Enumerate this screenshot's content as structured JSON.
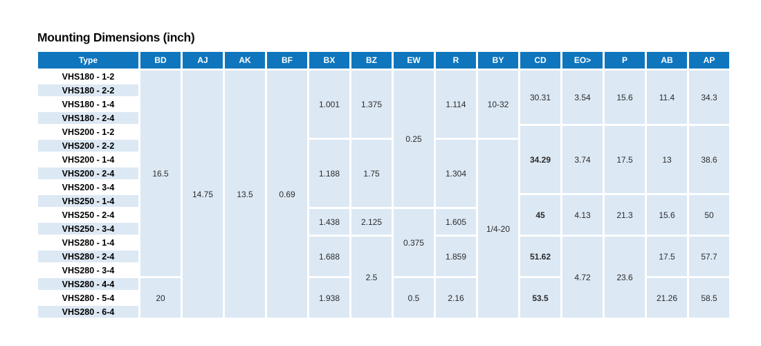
{
  "title": "Mounting Dimensions (inch)",
  "colors": {
    "header_bg": "#0f76bd",
    "band_bg": "#dce8f4",
    "header_text": "#ffffff",
    "label_text": "#000000",
    "value_text": "#2b2b2b"
  },
  "table": {
    "columns": [
      "Type",
      "BD",
      "AJ",
      "AK",
      "BF",
      "BX",
      "BZ",
      "EW",
      "R",
      "BY",
      "CD",
      "EO>",
      "P",
      "AB",
      "AP"
    ],
    "row_labels": [
      "VHS180 - 1-2",
      "VHS180 - 2-2",
      "VHS180 - 1-4",
      "VHS180 - 2-4",
      "VHS200 - 1-2",
      "VHS200 - 2-2",
      "VHS200 - 1-4",
      "VHS200 - 2-4",
      "VHS200 - 3-4",
      "VHS250 - 1-4",
      "VHS250 - 2-4",
      "VHS250 - 3-4",
      "VHS280 - 1-4",
      "VHS280 - 2-4",
      "VHS280 - 3-4",
      "VHS280 - 4-4",
      "VHS280 - 5-4",
      "VHS280 - 6-4"
    ],
    "bands": [
      {
        "col": "BD",
        "cells": [
          {
            "value": "16.5",
            "start": 1,
            "end": 15
          },
          {
            "value": "20",
            "start": 16,
            "end": 18
          }
        ]
      },
      {
        "col": "AJ",
        "cells": [
          {
            "value": "14.75",
            "start": 1,
            "end": 18
          }
        ]
      },
      {
        "col": "AK",
        "cells": [
          {
            "value": "13.5",
            "start": 1,
            "end": 18
          }
        ]
      },
      {
        "col": "BF",
        "cells": [
          {
            "value": "0.69",
            "start": 1,
            "end": 18
          }
        ]
      },
      {
        "col": "BX",
        "cells": [
          {
            "value": "1.001",
            "start": 1,
            "end": 5
          },
          {
            "value": "1.188",
            "start": 6,
            "end": 10
          },
          {
            "value": "1.438",
            "start": 11,
            "end": 12
          },
          {
            "value": "1.688",
            "start": 13,
            "end": 15
          },
          {
            "value": "1.938",
            "start": 16,
            "end": 18
          }
        ]
      },
      {
        "col": "BZ",
        "cells": [
          {
            "value": "1.375",
            "start": 1,
            "end": 5
          },
          {
            "value": "1.75",
            "start": 6,
            "end": 10
          },
          {
            "value": "2.125",
            "start": 11,
            "end": 12
          },
          {
            "value": "2.5",
            "start": 13,
            "end": 18
          }
        ]
      },
      {
        "col": "EW",
        "cells": [
          {
            "value": "0.25",
            "start": 1,
            "end": 10
          },
          {
            "value": "0.375",
            "start": 11,
            "end": 15
          },
          {
            "value": "0.5",
            "start": 16,
            "end": 18
          }
        ]
      },
      {
        "col": "R",
        "cells": [
          {
            "value": "1.114",
            "start": 1,
            "end": 5
          },
          {
            "value": "1.304",
            "start": 6,
            "end": 10
          },
          {
            "value": "1.605",
            "start": 11,
            "end": 12
          },
          {
            "value": "1.859",
            "start": 13,
            "end": 15
          },
          {
            "value": "2.16",
            "start": 16,
            "end": 18
          }
        ]
      },
      {
        "col": "BY",
        "cells": [
          {
            "value": "10-32",
            "start": 1,
            "end": 5
          },
          {
            "value": "1/4-20",
            "start": 6,
            "end": 18
          }
        ]
      },
      {
        "col": "CD",
        "cells": [
          {
            "value": "30.31",
            "start": 1,
            "end": 4
          },
          {
            "value": "34.29",
            "start": 5,
            "end": 9,
            "bold": true
          },
          {
            "value": "45",
            "start": 10,
            "end": 12,
            "bold": true
          },
          {
            "value": "51.62",
            "start": 13,
            "end": 15,
            "bold": true
          },
          {
            "value": "53.5",
            "start": 16,
            "end": 18,
            "bold": true
          }
        ]
      },
      {
        "col": "EO>",
        "cells": [
          {
            "value": "3.54",
            "start": 1,
            "end": 4
          },
          {
            "value": "3.74",
            "start": 5,
            "end": 9
          },
          {
            "value": "4.13",
            "start": 10,
            "end": 12
          },
          {
            "value": "4.72",
            "start": 13,
            "end": 18
          }
        ]
      },
      {
        "col": "P",
        "cells": [
          {
            "value": "15.6",
            "start": 1,
            "end": 4
          },
          {
            "value": "17.5",
            "start": 5,
            "end": 9
          },
          {
            "value": "21.3",
            "start": 10,
            "end": 12
          },
          {
            "value": "23.6",
            "start": 13,
            "end": 18
          }
        ]
      },
      {
        "col": "AB",
        "cells": [
          {
            "value": "11.4",
            "start": 1,
            "end": 4
          },
          {
            "value": "13",
            "start": 5,
            "end": 9
          },
          {
            "value": "15.6",
            "start": 10,
            "end": 12
          },
          {
            "value": "17.5",
            "start": 13,
            "end": 15
          },
          {
            "value": "21.26",
            "start": 16,
            "end": 18
          }
        ]
      },
      {
        "col": "AP",
        "cells": [
          {
            "value": "34.3",
            "start": 1,
            "end": 4
          },
          {
            "value": "38.6",
            "start": 5,
            "end": 9
          },
          {
            "value": "50",
            "start": 10,
            "end": 12
          },
          {
            "value": "57.7",
            "start": 13,
            "end": 15
          },
          {
            "value": "58.5",
            "start": 16,
            "end": 18
          }
        ]
      }
    ]
  }
}
